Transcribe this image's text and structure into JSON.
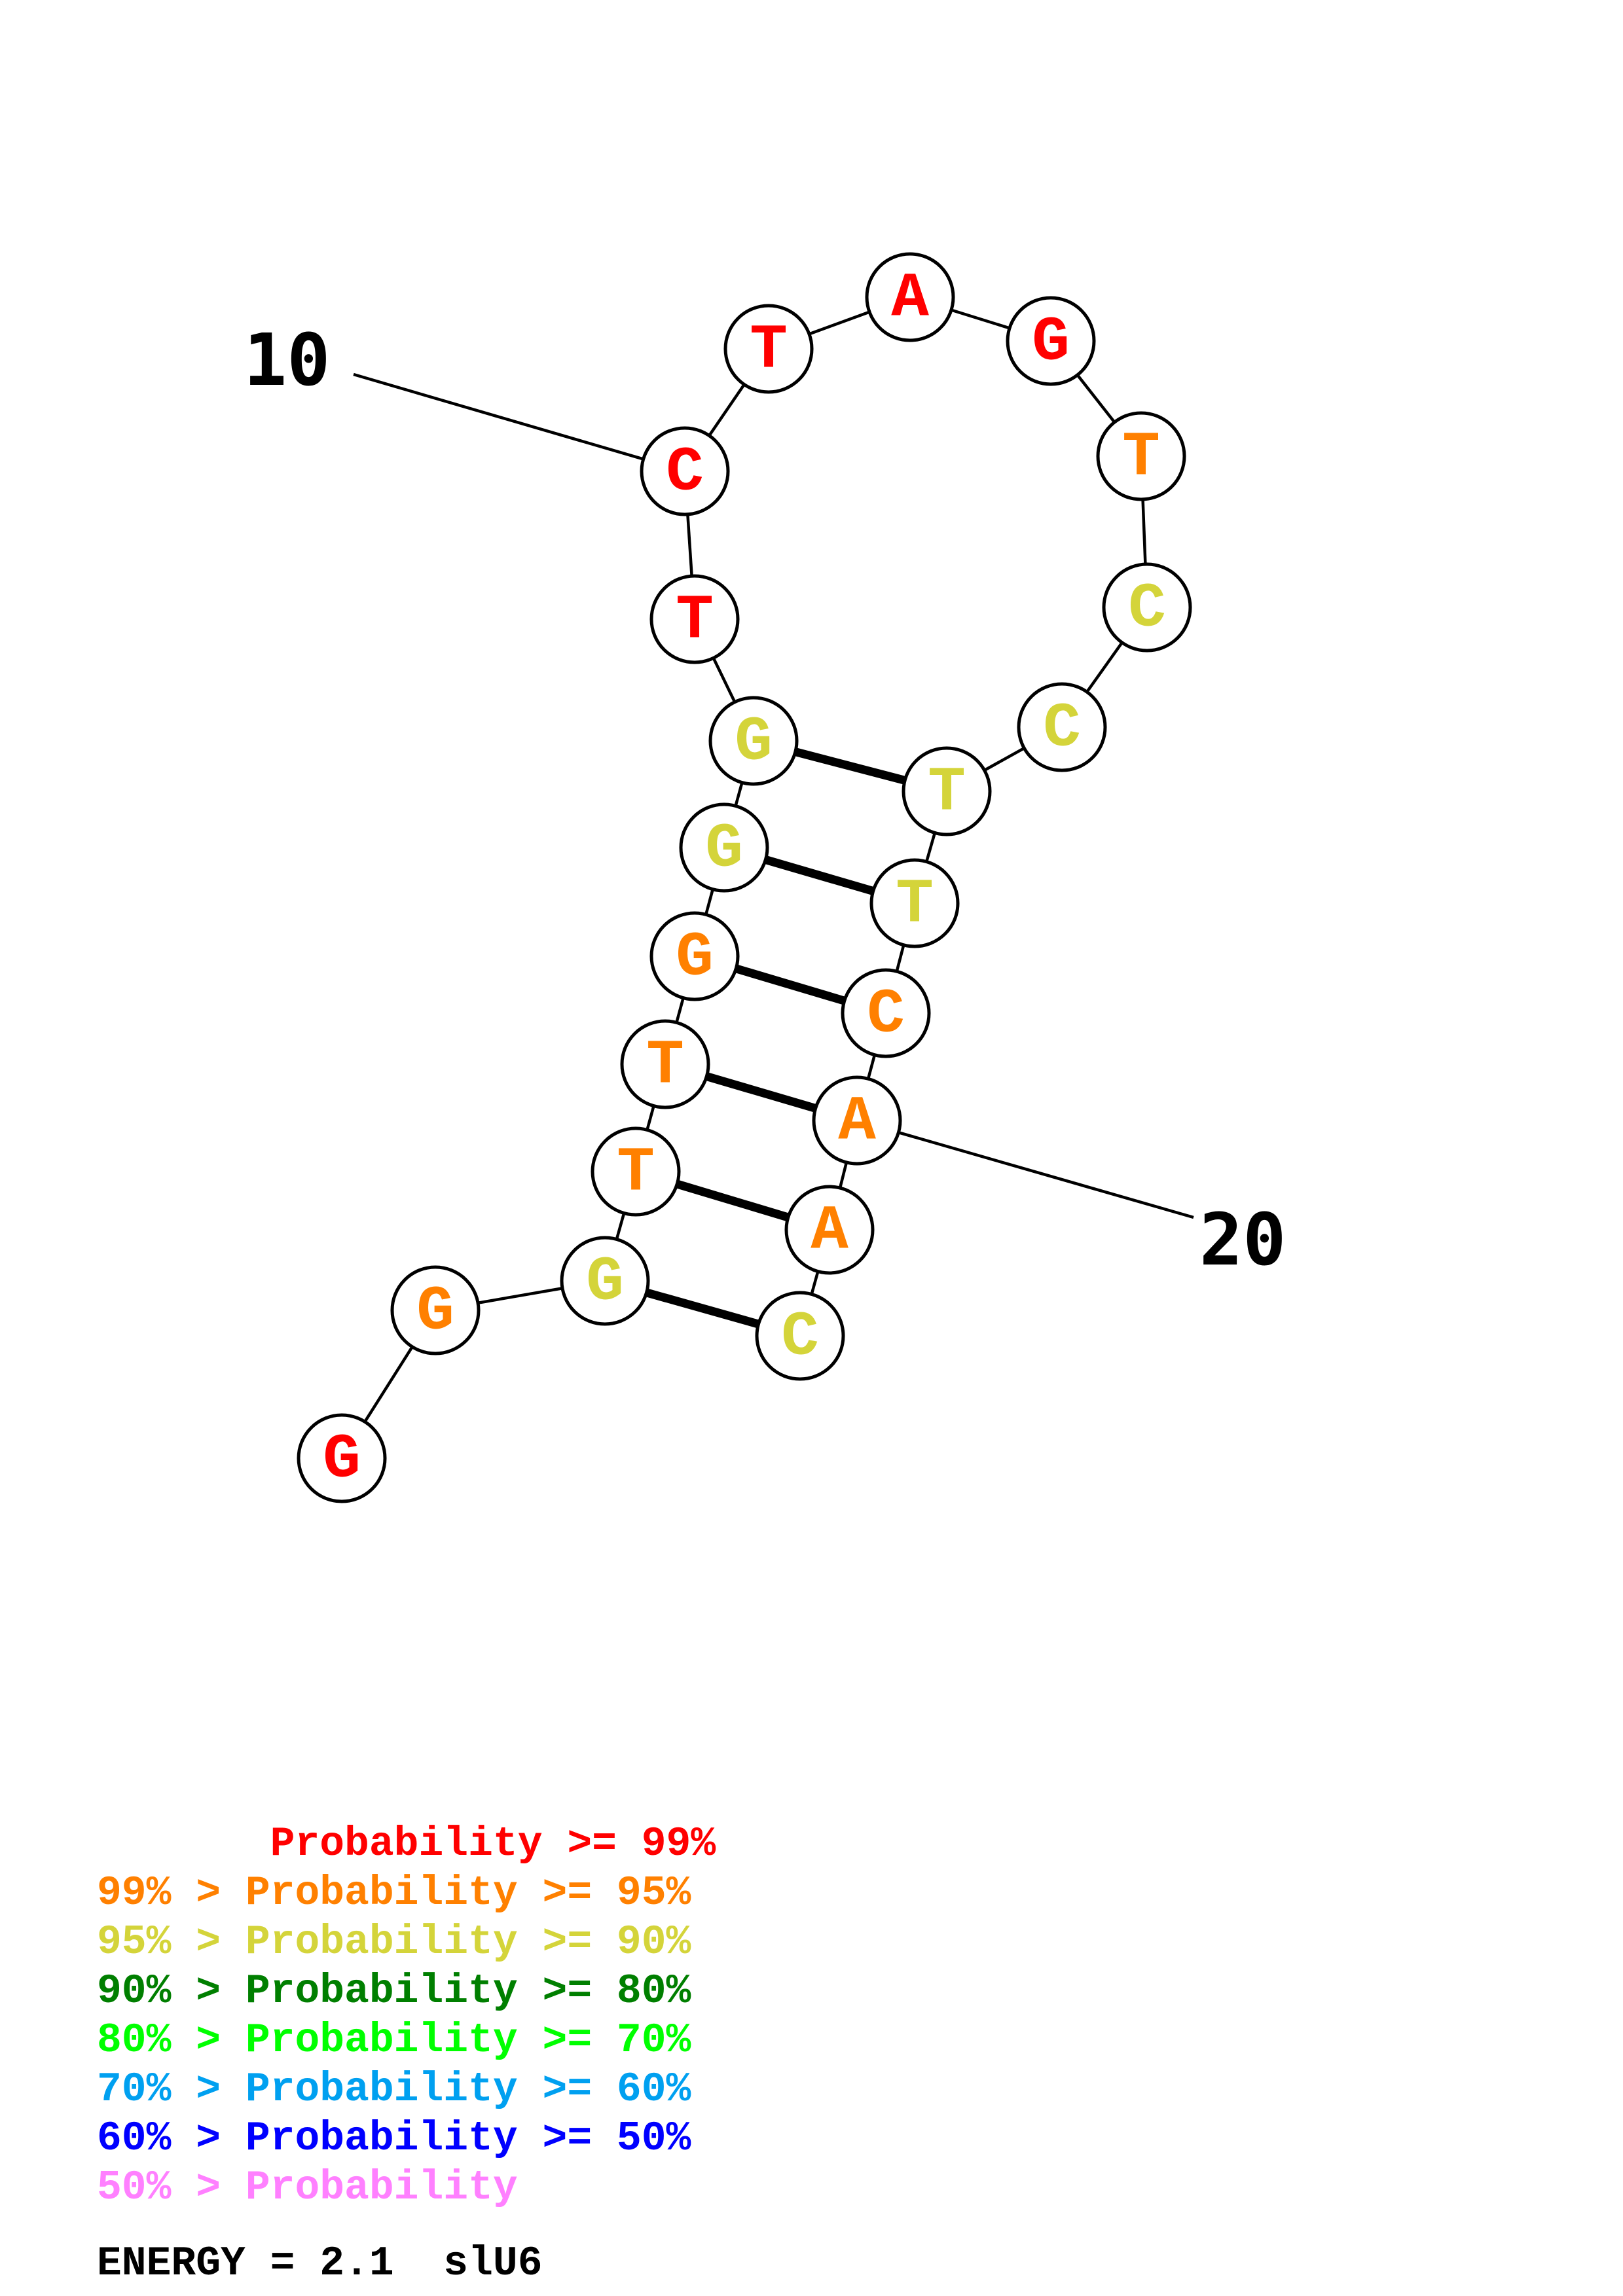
{
  "colors": {
    "p99": "#ff0000",
    "p95": "#ff8000",
    "p90": "#d4d43a",
    "p80": "#007f00",
    "p70": "#00ff00",
    "p60": "#00a0f0",
    "p50": "#0000ff",
    "pLow": "#ff80ff"
  },
  "nucleotides": [
    {
      "base": "G",
      "color": "p99"
    },
    {
      "base": "G",
      "color": "p95"
    },
    {
      "base": "G",
      "color": "p90"
    },
    {
      "base": "T",
      "color": "p95"
    },
    {
      "base": "T",
      "color": "p95"
    },
    {
      "base": "G",
      "color": "p95"
    },
    {
      "base": "G",
      "color": "p90"
    },
    {
      "base": "G",
      "color": "p90"
    },
    {
      "base": "T",
      "color": "p99"
    },
    {
      "base": "C",
      "color": "p99"
    },
    {
      "base": "T",
      "color": "p99"
    },
    {
      "base": "A",
      "color": "p99"
    },
    {
      "base": "G",
      "color": "p99"
    },
    {
      "base": "T",
      "color": "p95"
    },
    {
      "base": "C",
      "color": "p90"
    },
    {
      "base": "C",
      "color": "p90"
    },
    {
      "base": "T",
      "color": "p90"
    },
    {
      "base": "T",
      "color": "p90"
    },
    {
      "base": "C",
      "color": "p95"
    },
    {
      "base": "A",
      "color": "p95"
    },
    {
      "base": "A",
      "color": "p95"
    },
    {
      "base": "C",
      "color": "p90"
    }
  ],
  "pairs": [
    [
      3,
      22
    ],
    [
      4,
      21
    ],
    [
      5,
      20
    ],
    [
      6,
      19
    ],
    [
      7,
      18
    ],
    [
      8,
      17
    ]
  ],
  "numbers": [
    {
      "label": "10",
      "index": 10
    },
    {
      "label": "20",
      "index": 20
    }
  ],
  "legend": [
    {
      "text": "       Probability >= 99%",
      "color": "p99"
    },
    {
      "text": "99% > Probability >= 95%",
      "color": "p95"
    },
    {
      "text": "95% > Probability >= 90%",
      "color": "p90"
    },
    {
      "text": "90% > Probability >= 80%",
      "color": "p80"
    },
    {
      "text": "80% > Probability >= 70%",
      "color": "p70"
    },
    {
      "text": "70% > Probability >= 60%",
      "color": "p60"
    },
    {
      "text": "60% > Probability >= 50%",
      "color": "p50"
    },
    {
      "text": "50% > Probability",
      "color": "pLow"
    }
  ],
  "footer": {
    "energy": "ENERGY = 2.1  slU6"
  }
}
